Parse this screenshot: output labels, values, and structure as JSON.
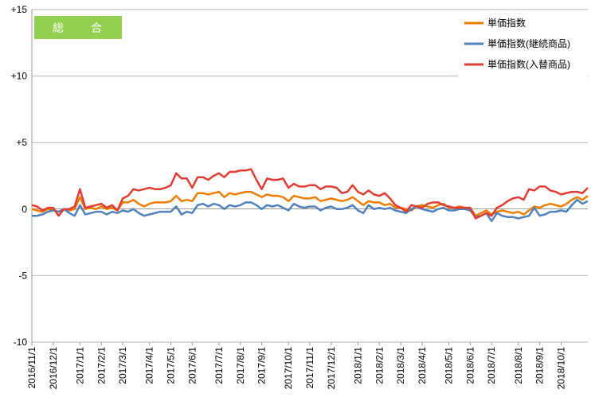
{
  "badge": {
    "label": "総　合",
    "color": "#92d050"
  },
  "chart_data": {
    "type": "line",
    "y_ticks": [
      {
        "value": 15,
        "label": "+15"
      },
      {
        "value": 10,
        "label": "+10"
      },
      {
        "value": 5,
        "label": "+5"
      },
      {
        "value": 0,
        "label": "0"
      },
      {
        "value": -5,
        "label": "-5"
      },
      {
        "value": -10,
        "label": "-10"
      }
    ],
    "ylim": [
      -10,
      15
    ],
    "grid": true,
    "legend_position": "top-right",
    "x_tick_labels": [
      "2016/11/1",
      "2016/12/1",
      "2017/1/1",
      "2017/2/1",
      "2017/3/1",
      "2017/4/1",
      "2017/5/1",
      "2017/6/1",
      "2017/7/1",
      "2017/8/1",
      "2017/9/1",
      "2017/10/1",
      "2017/11/1",
      "2017/12/1",
      "2018/1/1",
      "2018/2/1",
      "2018/3/1",
      "2018/4/1",
      "2018/5/1",
      "2018/6/1",
      "2018/7/1",
      "2018/8/1",
      "2018/9/1",
      "2018/10/1"
    ],
    "x_tick_week_index": [
      0,
      4,
      9,
      13,
      17,
      22,
      26,
      30,
      35,
      39,
      43,
      48,
      52,
      56,
      61,
      65,
      69,
      73,
      78,
      82,
      86,
      91,
      95,
      99
    ],
    "series": [
      {
        "name": "単価指数",
        "color": "#ed7d00",
        "values": [
          0.0,
          -0.1,
          -0.2,
          0.0,
          -0.1,
          -0.2,
          0.0,
          -0.1,
          0.0,
          0.9,
          0.0,
          0.1,
          0.0,
          0.2,
          0.0,
          0.1,
          -0.1,
          0.5,
          0.5,
          0.7,
          0.4,
          0.2,
          0.4,
          0.5,
          0.5,
          0.5,
          0.6,
          1.0,
          0.6,
          0.7,
          0.6,
          1.2,
          1.2,
          1.1,
          1.2,
          1.3,
          0.9,
          1.2,
          1.1,
          1.2,
          1.3,
          1.3,
          1.1,
          0.9,
          1.1,
          1.0,
          1.0,
          0.9,
          0.6,
          1.0,
          0.9,
          0.8,
          0.8,
          0.9,
          0.6,
          0.7,
          0.8,
          0.7,
          0.6,
          0.7,
          0.9,
          0.6,
          0.3,
          0.6,
          0.5,
          0.5,
          0.3,
          0.4,
          0.1,
          0.1,
          0.0,
          -0.1,
          0.2,
          0.3,
          0.2,
          0.1,
          0.3,
          0.4,
          0.1,
          0.1,
          0.2,
          0.1,
          0.1,
          -0.5,
          -0.3,
          -0.1,
          -0.4,
          -0.2,
          -0.1,
          -0.2,
          -0.3,
          -0.2,
          -0.4,
          -0.1,
          0.2,
          0.1,
          0.3,
          0.4,
          0.3,
          0.2,
          0.4,
          0.7,
          0.9,
          0.7,
          1.0
        ]
      },
      {
        "name": "単価指数(継続商品)",
        "color": "#4f81bd",
        "values": [
          -0.5,
          -0.5,
          -0.4,
          -0.2,
          -0.1,
          -0.2,
          0.0,
          -0.3,
          -0.5,
          0.3,
          -0.4,
          -0.3,
          -0.2,
          -0.2,
          -0.4,
          -0.2,
          -0.3,
          -0.1,
          -0.2,
          0.0,
          -0.3,
          -0.5,
          -0.4,
          -0.3,
          -0.2,
          -0.2,
          -0.2,
          0.2,
          -0.4,
          -0.2,
          -0.3,
          0.3,
          0.4,
          0.2,
          0.4,
          0.3,
          0.0,
          0.3,
          0.2,
          0.3,
          0.5,
          0.5,
          0.3,
          0.0,
          0.3,
          0.2,
          0.3,
          0.1,
          -0.1,
          0.4,
          0.2,
          0.1,
          0.2,
          0.2,
          -0.1,
          0.1,
          0.2,
          0.0,
          0.0,
          0.1,
          0.3,
          -0.1,
          -0.3,
          0.3,
          0.0,
          0.1,
          0.0,
          0.1,
          -0.1,
          -0.2,
          -0.3,
          0.0,
          0.2,
          0.0,
          -0.1,
          -0.2,
          0.0,
          0.1,
          -0.1,
          -0.1,
          0.0,
          0.0,
          -0.1,
          -0.6,
          -0.5,
          -0.3,
          -0.9,
          -0.3,
          -0.5,
          -0.6,
          -0.6,
          -0.7,
          -0.6,
          -0.5,
          0.1,
          -0.5,
          -0.4,
          -0.2,
          -0.2,
          -0.1,
          -0.2,
          0.3,
          0.7,
          0.4,
          0.6
        ]
      },
      {
        "name": "単価指数(入替商品)",
        "color": "#e03c31",
        "values": [
          0.3,
          0.2,
          -0.1,
          0.1,
          0.1,
          -0.5,
          0.0,
          0.0,
          0.2,
          1.5,
          0.1,
          0.2,
          0.3,
          0.4,
          0.1,
          0.3,
          -0.1,
          0.8,
          1.0,
          1.5,
          1.4,
          1.5,
          1.6,
          1.5,
          1.5,
          1.6,
          1.8,
          2.7,
          2.3,
          2.3,
          1.6,
          2.4,
          2.4,
          2.2,
          2.5,
          2.7,
          2.4,
          2.8,
          2.8,
          2.9,
          2.9,
          3.0,
          2.2,
          1.5,
          2.3,
          2.2,
          2.2,
          2.3,
          1.6,
          1.9,
          1.7,
          1.7,
          1.8,
          1.8,
          1.5,
          1.7,
          1.7,
          1.6,
          1.2,
          1.3,
          1.8,
          1.3,
          1.1,
          1.4,
          1.1,
          1.0,
          1.2,
          0.8,
          0.3,
          0.1,
          -0.2,
          0.3,
          0.2,
          0.1,
          0.4,
          0.5,
          0.5,
          0.3,
          0.2,
          0.1,
          0.1,
          0.1,
          0.1,
          -0.7,
          -0.5,
          -0.3,
          -0.5,
          0.1,
          0.3,
          0.6,
          0.8,
          0.9,
          0.7,
          1.5,
          1.4,
          1.7,
          1.7,
          1.4,
          1.3,
          1.1,
          1.2,
          1.3,
          1.3,
          1.2,
          1.6
        ]
      }
    ]
  }
}
